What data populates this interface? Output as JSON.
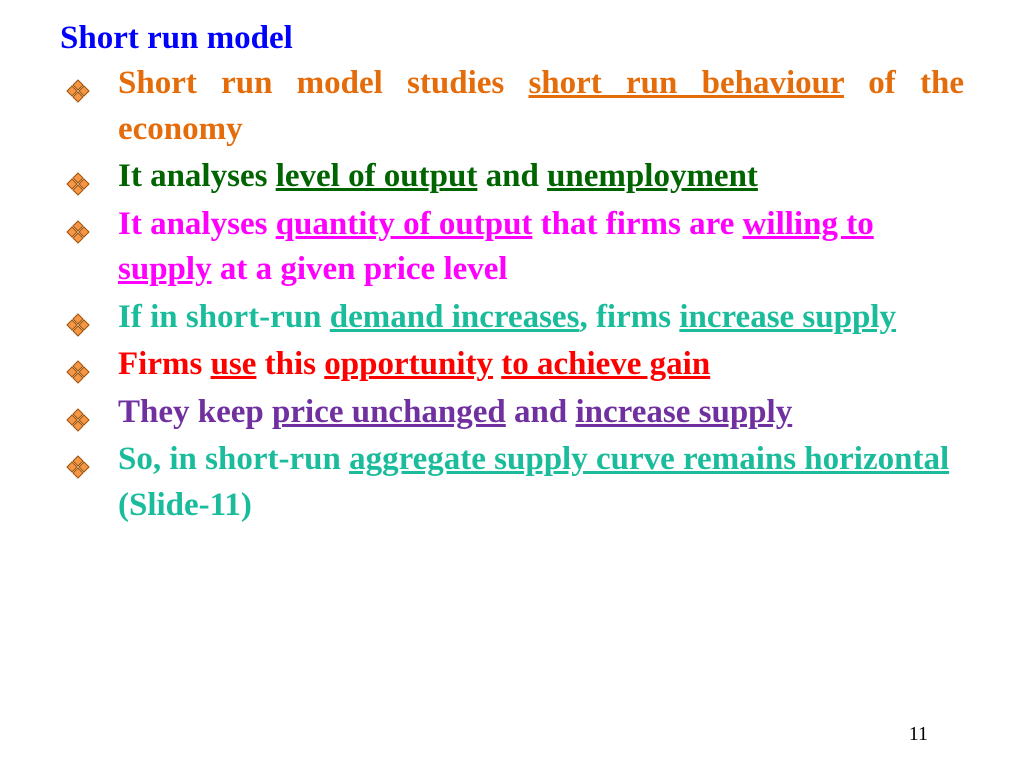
{
  "colors": {
    "title": "#0000ff",
    "orange": "#e46c0a",
    "darkgreen": "#006400",
    "magenta": "#ff00ff",
    "seagreen": "#1abc9c",
    "red": "#ff0000",
    "purple": "#7030a0",
    "bullet_fill": "#f79646",
    "bullet_stroke": "#9c5207"
  },
  "title": "Short run model",
  "page_number": "11",
  "items": [
    {
      "color_key": "orange",
      "justify": true,
      "segments": [
        {
          "text": "Short run model studies ",
          "underline": false
        },
        {
          "text": "short run behaviour",
          "underline": true
        },
        {
          "text": " of the economy",
          "underline": false
        }
      ]
    },
    {
      "color_key": "darkgreen",
      "justify": false,
      "segments": [
        {
          "text": "It analyses ",
          "underline": false
        },
        {
          "text": "level of output",
          "underline": true
        },
        {
          "text": " and ",
          "underline": false
        },
        {
          "text": "unemployment",
          "underline": true
        }
      ]
    },
    {
      "color_key": "magenta",
      "justify": false,
      "segments": [
        {
          "text": "It analyses ",
          "underline": false
        },
        {
          "text": "quantity of output",
          "underline": true
        },
        {
          "text": " that firms are ",
          "underline": false
        },
        {
          "text": "willing to supply",
          "underline": true
        },
        {
          "text": " at a given price level",
          "underline": false
        }
      ]
    },
    {
      "color_key": "seagreen",
      "justify": false,
      "segments": [
        {
          "text": "If in short-run ",
          "underline": false
        },
        {
          "text": "demand increases",
          "underline": true
        },
        {
          "text": ", firms ",
          "underline": false
        },
        {
          "text": "increase supply",
          "underline": true
        }
      ]
    },
    {
      "color_key": "red",
      "justify": false,
      "segments": [
        {
          "text": "Firms ",
          "underline": false
        },
        {
          "text": "use",
          "underline": true
        },
        {
          "text": " this ",
          "underline": false
        },
        {
          "text": "opportunity",
          "underline": true
        },
        {
          "text": " ",
          "underline": false
        },
        {
          "text": "to achieve gain",
          "underline": true
        }
      ]
    },
    {
      "color_key": "purple",
      "justify": false,
      "segments": [
        {
          "text": "They keep ",
          "underline": false
        },
        {
          "text": "price unchanged",
          "underline": true
        },
        {
          "text": " and ",
          "underline": false
        },
        {
          "text": "increase supply",
          "underline": true
        }
      ]
    },
    {
      "color_key": "seagreen",
      "justify": false,
      "segments": [
        {
          "text": "So, in short-run ",
          "underline": false
        },
        {
          "text": "aggregate supply curve remains horizontal",
          "underline": true
        },
        {
          "text": " (Slide-11)",
          "underline": false
        }
      ]
    }
  ]
}
